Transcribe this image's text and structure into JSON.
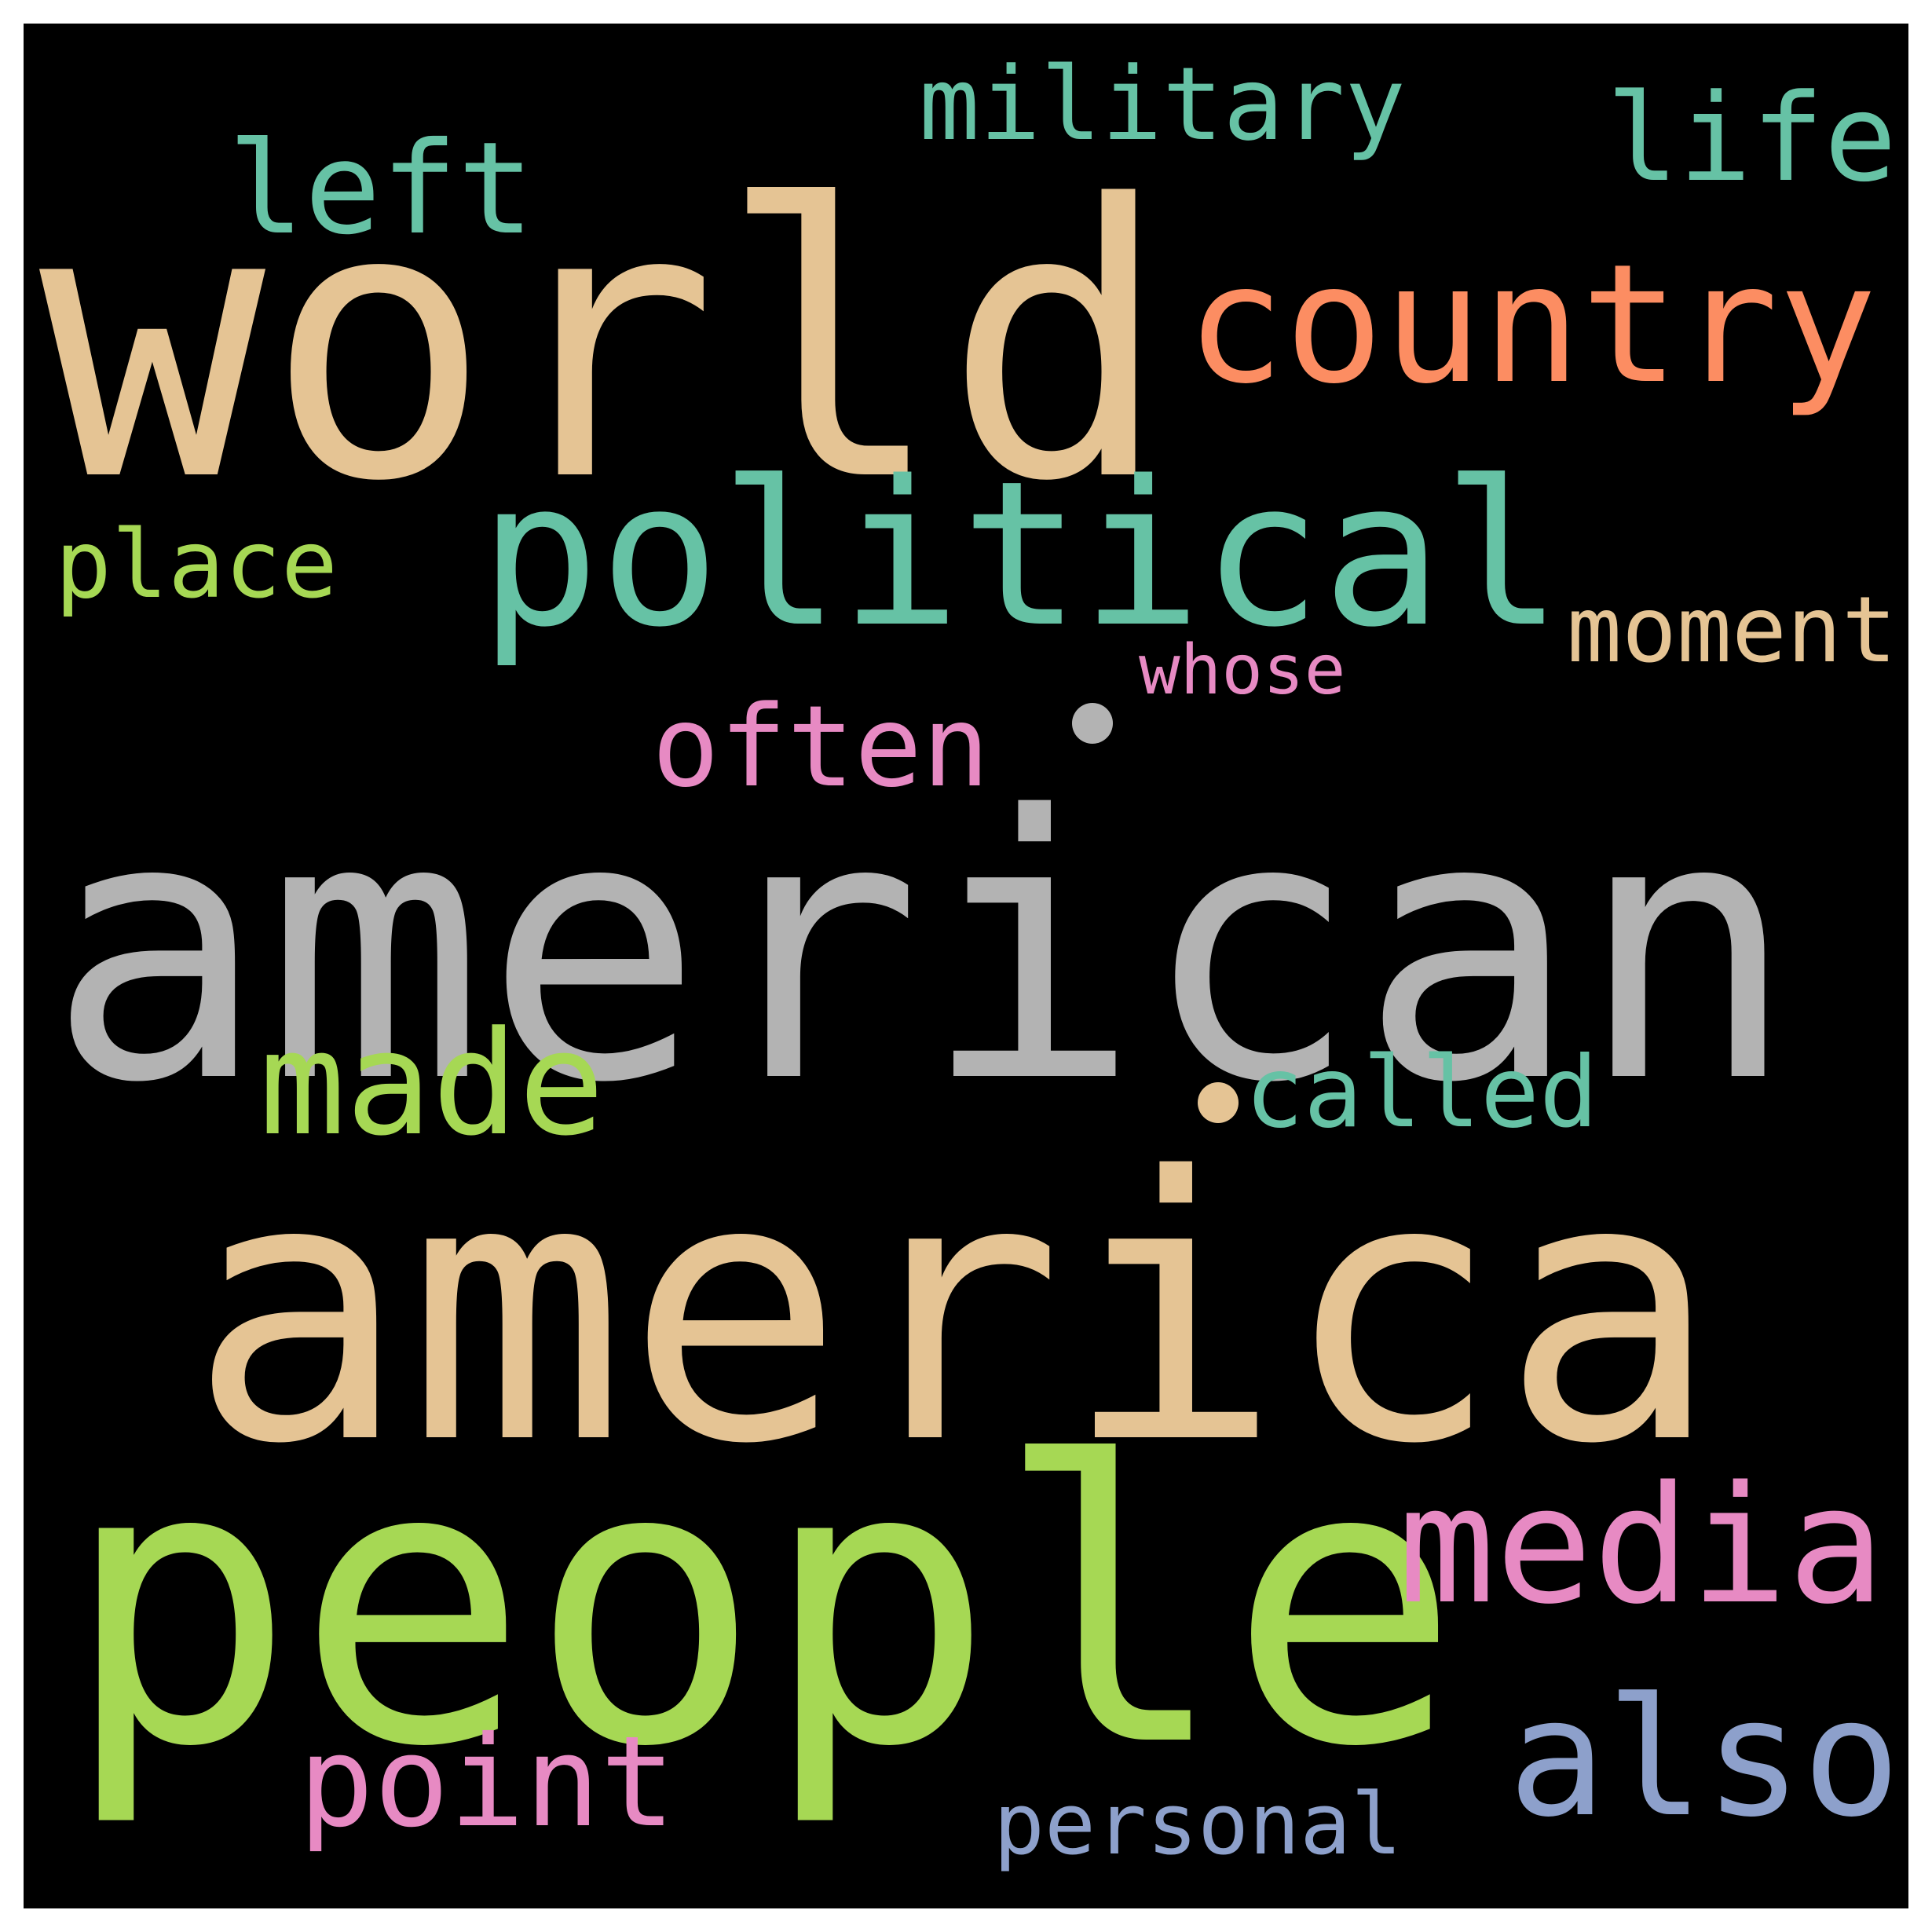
{
  "words": [
    {
      "text": "world",
      "color": "#e5c494"
    },
    {
      "text": "country",
      "color": "#fc8d62"
    },
    {
      "text": "left",
      "color": "#66c2a5"
    },
    {
      "text": "military",
      "color": "#66c2a5"
    },
    {
      "text": "life",
      "color": "#66c2a5"
    },
    {
      "text": "political",
      "color": "#66c2a5"
    },
    {
      "text": "place",
      "color": "#a6d854"
    },
    {
      "text": "moment",
      "color": "#e5c494"
    },
    {
      "text": "whose",
      "color": "#e78ac3"
    },
    {
      "text": "often",
      "color": "#e78ac3"
    },
    {
      "text": "american",
      "color": "#b3b3b3"
    },
    {
      "text": "made",
      "color": "#a6d854"
    },
    {
      "text": "called",
      "color": "#66c2a5"
    },
    {
      "text": "america",
      "color": "#e5c494"
    },
    {
      "text": "people",
      "color": "#a6d854"
    },
    {
      "text": "media",
      "color": "#e78ac3"
    },
    {
      "text": "also",
      "color": "#8da0cb"
    },
    {
      "text": "point",
      "color": "#e78ac3"
    },
    {
      "text": "personal",
      "color": "#8da0cb"
    }
  ],
  "colors": {
    "background": "#000000",
    "frame": "#ffffff",
    "dot_1": "#b3b3b3",
    "dot_2": "#e5c494"
  }
}
